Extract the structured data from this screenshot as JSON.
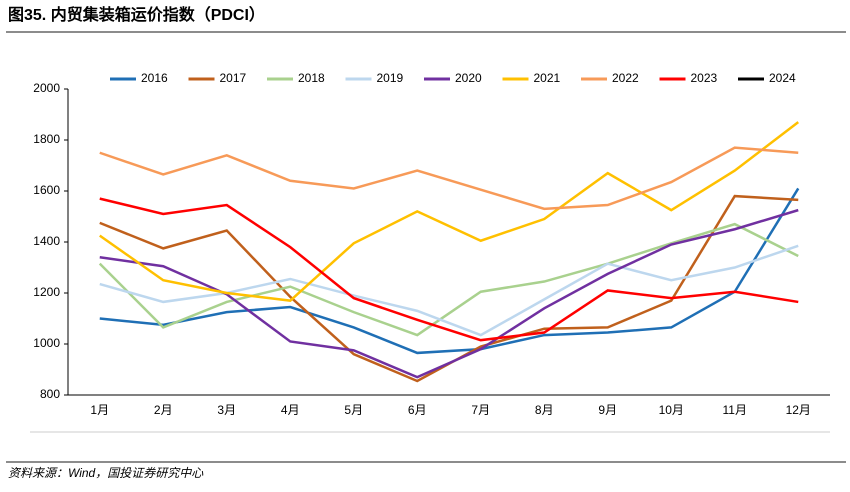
{
  "chart_data": {
    "type": "line",
    "title": "图35. 内贸集装箱运价指数（PDCI）",
    "source": "资料来源：Wind，国投证券研究中心",
    "categories": [
      "1月",
      "2月",
      "3月",
      "4月",
      "5月",
      "6月",
      "7月",
      "8月",
      "9月",
      "10月",
      "11月",
      "12月"
    ],
    "series": [
      {
        "name": "2016",
        "color": "#1f6fb5",
        "values": [
          1100,
          1075,
          1125,
          1145,
          1065,
          965,
          980,
          1035,
          1045,
          1065,
          1205,
          1610
        ]
      },
      {
        "name": "2017",
        "color": "#c0601c",
        "values": [
          1475,
          1375,
          1445,
          1185,
          960,
          855,
          990,
          1060,
          1065,
          1170,
          1580,
          1565
        ]
      },
      {
        "name": "2018",
        "color": "#a9d18e",
        "values": [
          1315,
          1065,
          1165,
          1225,
          1125,
          1035,
          1205,
          1245,
          1315,
          1395,
          1470,
          1345
        ]
      },
      {
        "name": "2019",
        "color": "#bdd7ee",
        "values": [
          1235,
          1165,
          1200,
          1255,
          1190,
          1130,
          1035,
          1175,
          1315,
          1250,
          1300,
          1385
        ]
      },
      {
        "name": "2020",
        "color": "#7030a0",
        "values": [
          1340,
          1305,
          1195,
          1010,
          975,
          870,
          980,
          1140,
          1275,
          1390,
          1450,
          1525
        ]
      },
      {
        "name": "2021",
        "color": "#ffc000",
        "values": [
          1425,
          1250,
          1200,
          1170,
          1395,
          1520,
          1405,
          1490,
          1670,
          1525,
          1680,
          1870
        ]
      },
      {
        "name": "2022",
        "color": "#f79a58",
        "values": [
          1750,
          1665,
          1740,
          1640,
          1610,
          1680,
          1605,
          1530,
          1545,
          1635,
          1770,
          1750
        ]
      },
      {
        "name": "2023",
        "color": "#ff0000",
        "values": [
          1570,
          1510,
          1545,
          1380,
          1180,
          1095,
          1015,
          1045,
          1210,
          1180,
          1205,
          1165
        ]
      },
      {
        "name": "2024",
        "color": "#000000",
        "values": [
          null,
          null,
          null,
          null,
          null,
          null,
          null,
          null,
          null,
          null,
          null,
          null
        ]
      }
    ],
    "ylim": [
      800,
      2000
    ],
    "yticks": [
      800,
      1000,
      1200,
      1400,
      1600,
      1800,
      2000
    ],
    "grid": false
  }
}
